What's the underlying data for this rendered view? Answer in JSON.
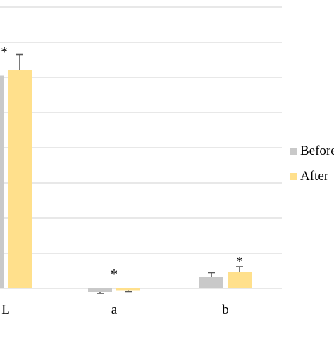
{
  "chart_data": {
    "type": "bar",
    "categories": [
      "L",
      "a",
      "b"
    ],
    "series": [
      {
        "name": "Before",
        "values": [
          60.5,
          -1.0,
          3.2
        ],
        "errors": [
          0,
          0.4,
          1.3
        ]
      },
      {
        "name": "After",
        "values": [
          62.0,
          -0.5,
          4.6
        ],
        "errors": [
          4.5,
          0.4,
          1.6
        ]
      }
    ],
    "significance": [
      "*",
      "*",
      "*"
    ],
    "ylim": [
      -2,
      80
    ],
    "grid": true,
    "legend_position": "right",
    "title": "",
    "xlabel": "",
    "ylabel": ""
  },
  "colors": {
    "before": "#c9c9c9",
    "after": "#ffe08c",
    "error": "#595959",
    "grid": "#d9d9d9",
    "text": "#000000"
  }
}
